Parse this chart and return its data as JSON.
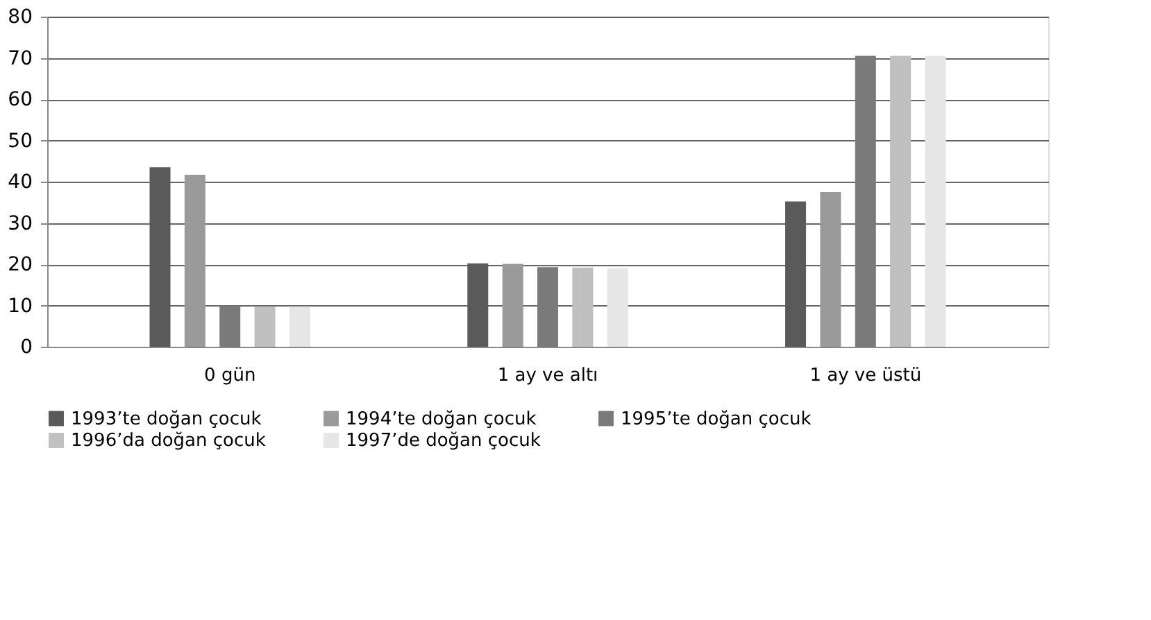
{
  "chart_data": {
    "type": "bar",
    "categories": [
      "0 gün",
      "1 ay ve altı",
      "1 ay ve üstü"
    ],
    "series": [
      {
        "name": "1993’te doğan çocuk",
        "color": "#5a5a5a",
        "values": [
          43.5,
          20.2,
          35.2
        ]
      },
      {
        "name": "1994’te doğan çocuk",
        "color": "#9a9a9a",
        "values": [
          41.7,
          20.1,
          37.5
        ]
      },
      {
        "name": "1995’te doğan çocuk",
        "color": "#7a7a7a",
        "values": [
          10,
          19.3,
          70.5
        ]
      },
      {
        "name": "1996’da doğan çocuk",
        "color": "#c0c0c0",
        "values": [
          9.8,
          19.2,
          70.5
        ]
      },
      {
        "name": "1997’de doğan çocuk",
        "color": "#e6e6e6",
        "values": [
          9.8,
          19,
          70.5
        ]
      }
    ],
    "ylim": [
      0,
      80
    ],
    "yticks": [
      0,
      10,
      20,
      30,
      40,
      50,
      60,
      70,
      80
    ],
    "grid": "y",
    "legend": "bottom"
  }
}
